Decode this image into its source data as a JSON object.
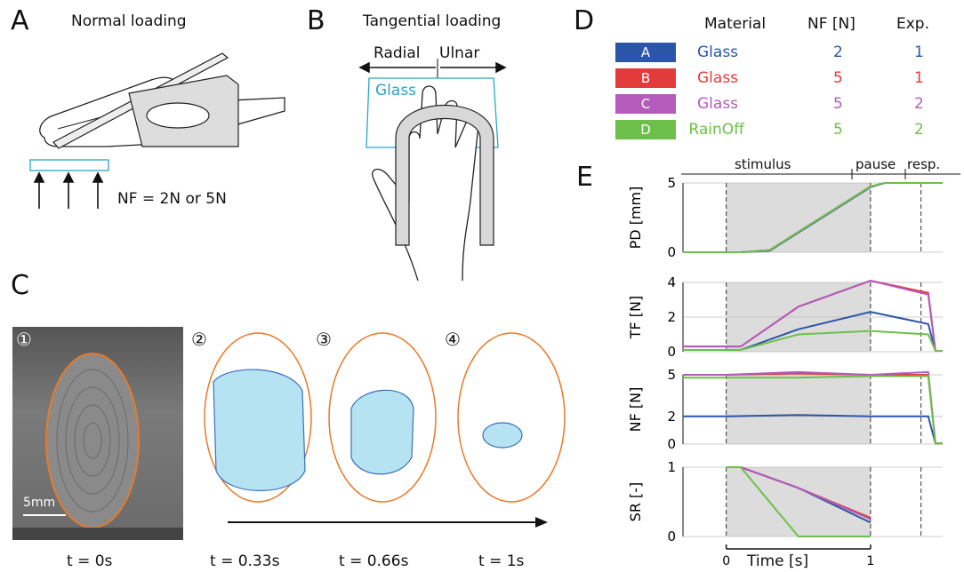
{
  "panels": {
    "A": {
      "letter": "A",
      "title": "Normal loading",
      "force_label": "NF = 2N or 5N"
    },
    "B": {
      "letter": "B",
      "title": "Tangential loading",
      "left": "Radial",
      "right": "Ulnar",
      "plate": "Glass"
    },
    "C": {
      "letter": "C",
      "scalebar": "5mm",
      "frames": [
        {
          "num": "①",
          "t": "t = 0s"
        },
        {
          "num": "②",
          "t": "t = 0.33s"
        },
        {
          "num": "③",
          "t": "t = 0.66s"
        },
        {
          "num": "④",
          "t": "t = 1s"
        }
      ]
    },
    "D": {
      "letter": "D",
      "headers": [
        "Material",
        "NF [N]",
        "Exp."
      ],
      "rows": [
        {
          "id": "A",
          "material": "Glass",
          "nf": "2",
          "exp": "1",
          "color": "#2a55a8"
        },
        {
          "id": "B",
          "material": "Glass",
          "nf": "5",
          "exp": "1",
          "color": "#e23b3b"
        },
        {
          "id": "C",
          "material": "Glass",
          "nf": "5",
          "exp": "2",
          "color": "#b45bbb"
        },
        {
          "id": "D",
          "material": "RainOff",
          "nf": "5",
          "exp": "2",
          "color": "#6cc04a"
        }
      ]
    },
    "E": {
      "letter": "E",
      "phases": [
        "stimulus",
        "pause",
        "resp."
      ],
      "xlabel": "Time [s]"
    }
  },
  "chart_data": [
    {
      "type": "line",
      "ylabel": "PD [mm]",
      "ylim": [
        0,
        5
      ],
      "yticks": [
        "0",
        "5"
      ],
      "x": [
        -0.3,
        0.1,
        0.3,
        1.0,
        1.1,
        1.3,
        1.5
      ],
      "series": [
        {
          "name": "A",
          "values": [
            0,
            0,
            0.1,
            4.7,
            5,
            5,
            5
          ]
        },
        {
          "name": "B",
          "values": [
            0,
            0,
            0.15,
            4.75,
            5,
            5,
            5
          ]
        },
        {
          "name": "C",
          "values": [
            0,
            0,
            0.15,
            4.75,
            5,
            5,
            5
          ]
        },
        {
          "name": "D",
          "values": [
            0,
            0,
            0.15,
            4.75,
            5,
            5,
            5
          ]
        }
      ]
    },
    {
      "type": "line",
      "ylabel": "TF [N]",
      "ylim": [
        0,
        4
      ],
      "yticks": [
        "0",
        "2",
        "4"
      ],
      "x": [
        -0.3,
        0.0,
        0.1,
        0.5,
        1.0,
        1.4,
        1.45,
        1.5
      ],
      "series": [
        {
          "name": "A",
          "values": [
            0.1,
            0.1,
            0.1,
            1.3,
            2.3,
            1.6,
            0.05,
            0.05
          ]
        },
        {
          "name": "B",
          "values": [
            0.3,
            0.3,
            0.3,
            2.6,
            4.1,
            3.4,
            0.05,
            0.05
          ]
        },
        {
          "name": "C",
          "values": [
            0.3,
            0.3,
            0.3,
            2.6,
            4.1,
            3.3,
            0.05,
            0.05
          ]
        },
        {
          "name": "D",
          "values": [
            0.1,
            0.1,
            0.1,
            1.0,
            1.2,
            1.0,
            0.05,
            0.05
          ]
        }
      ]
    },
    {
      "type": "line",
      "ylabel": "NF [N]",
      "ylim": [
        0,
        5
      ],
      "yticks": [
        "0",
        "2",
        "5"
      ],
      "x": [
        -0.3,
        0.0,
        0.5,
        1.0,
        1.4,
        1.45,
        1.5
      ],
      "series": [
        {
          "name": "A",
          "values": [
            2,
            2,
            2.1,
            2,
            2,
            0.05,
            0.05
          ]
        },
        {
          "name": "B",
          "values": [
            5,
            5,
            5.1,
            5,
            5,
            0.05,
            0.05
          ]
        },
        {
          "name": "C",
          "values": [
            5,
            5,
            5.2,
            5,
            5.2,
            0.05,
            0.05
          ]
        },
        {
          "name": "D",
          "values": [
            4.8,
            4.8,
            4.8,
            4.9,
            4.9,
            0.05,
            0.05
          ]
        }
      ]
    },
    {
      "type": "line",
      "ylabel": "SR [-]",
      "ylim": [
        0,
        1
      ],
      "yticks": [
        "0",
        "1"
      ],
      "xticks": [
        "0",
        "1"
      ],
      "x": [
        0.0,
        0.1,
        0.5,
        1.0
      ],
      "series": [
        {
          "name": "A",
          "values": [
            1,
            1,
            0.7,
            0.2
          ]
        },
        {
          "name": "B",
          "values": [
            1,
            1,
            0.7,
            0.27
          ]
        },
        {
          "name": "C",
          "values": [
            1,
            1,
            0.7,
            0.25
          ]
        },
        {
          "name": "D",
          "values": [
            1,
            1,
            0,
            0
          ]
        }
      ]
    }
  ]
}
